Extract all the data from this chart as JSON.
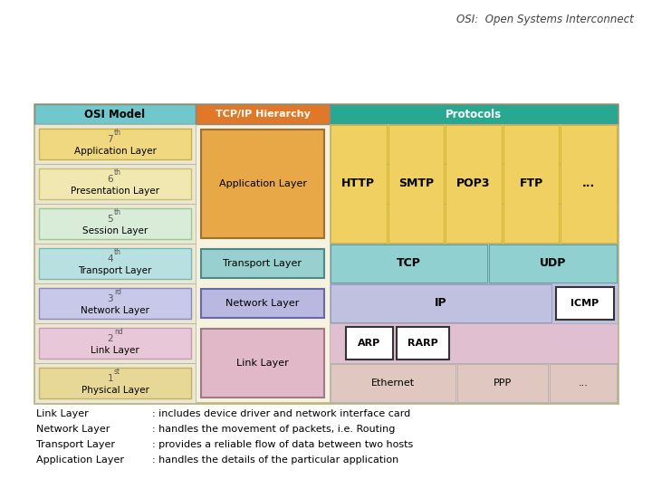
{
  "title": "OSI:  Open Systems Interconnect",
  "bg_color": "#ffffff",
  "outer_fill": "#f5f2e0",
  "outer_edge": "#c0b878",
  "header_osi_color": "#70c8cc",
  "header_tcp_color": "#e07828",
  "header_proto_color": "#28a890",
  "layers": [
    {
      "num": "7th",
      "name": "Application Layer",
      "cell_color": "#f0d880",
      "border": "#c8b048"
    },
    {
      "num": "6th",
      "name": "Presentation Layer",
      "cell_color": "#f0e8b0",
      "border": "#c8c070"
    },
    {
      "num": "5th",
      "name": "Session Layer",
      "cell_color": "#d8ecd8",
      "border": "#98c898"
    },
    {
      "num": "4th",
      "name": "Transport Layer",
      "cell_color": "#b8e0e0",
      "border": "#78b8b8"
    },
    {
      "num": "3rd",
      "name": "Network Layer",
      "cell_color": "#c8c8e8",
      "border": "#8888c8"
    },
    {
      "num": "2nd",
      "name": "Link Layer",
      "cell_color": "#e8c8d8",
      "border": "#c898b8"
    },
    {
      "num": "1st",
      "name": "Physical Layer",
      "cell_color": "#e8d898",
      "border": "#c0b068"
    }
  ],
  "tcp_app_color": "#e8a848",
  "tcp_transport_color": "#98d0d0",
  "tcp_network_color": "#b8b8e0",
  "tcp_link_color": "#e0b8c8",
  "proto_app_color": "#f0d060",
  "proto_transport_color": "#90d0d0",
  "proto_network_color": "#c0c0e0",
  "proto_link_color": "#e0c0d0",
  "proto_phys_color": "#e0c8c0",
  "app_protocols": [
    "HTTP",
    "SMTP",
    "POP3",
    "FTP",
    "..."
  ],
  "footer_lines": [
    [
      "Link Layer",
      ": includes device driver and network interface card"
    ],
    [
      "Network Layer",
      ": handles the movement of packets, i.e. Routing"
    ],
    [
      "Transport Layer",
      ": provides a reliable flow of data between two hosts"
    ],
    [
      "Application Layer",
      ": handles the details of the particular application"
    ]
  ]
}
